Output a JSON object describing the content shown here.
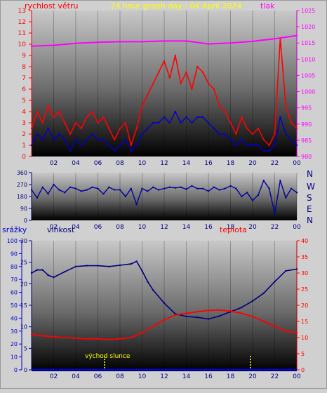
{
  "header": {
    "wind_title": "rychlost větru",
    "graph_title": "24 hour graph day : 04 April 2024",
    "pressure_title": "tlak"
  },
  "direction_axis": [
    "N",
    "W",
    "S",
    "E",
    "N"
  ],
  "lower_titles": {
    "rain": "srážky",
    "humidity": "vlhkost",
    "temperature": "teplota",
    "sunrise": "východ slunce"
  },
  "colors": {
    "wind": "#ff0000",
    "wind_avg": "#0000cc",
    "pressure": "#ff00ff",
    "direction": "#0000a0",
    "humidity": "#000080",
    "temperature": "#ff0000",
    "rain": "#0000ff",
    "sun_marker": "#ffff00",
    "title": "#ffff00"
  },
  "chart_data": [
    {
      "type": "line",
      "name": "wind_pressure",
      "xticks": [
        "02",
        "04",
        "06",
        "08",
        "10",
        "12",
        "14",
        "16",
        "18",
        "20",
        "22",
        "00"
      ],
      "y_left": {
        "title": "rychlost větru",
        "ticks": [
          "0",
          "1",
          "2",
          "3",
          "4",
          "5",
          "6",
          "7",
          "8",
          "9",
          "10",
          "11",
          "12",
          "13"
        ],
        "ylim": [
          0,
          13
        ]
      },
      "y_right": {
        "title": "tlak",
        "ticks": [
          "980",
          "985",
          "990",
          "995",
          "1000",
          "1005",
          "1010",
          "1015",
          "1020",
          "1025"
        ],
        "ylim": [
          980,
          1025
        ]
      },
      "series": [
        {
          "axis": "left",
          "kind": "gust",
          "x": [
            0,
            0.5,
            1,
            1.5,
            2,
            2.5,
            3,
            3.5,
            4,
            4.5,
            5,
            5.5,
            6,
            6.5,
            7,
            7.5,
            8,
            8.5,
            9,
            9.5,
            10,
            10.5,
            11,
            11.5,
            12,
            12.5,
            13,
            13.5,
            14,
            14.5,
            15,
            15.5,
            16,
            16.5,
            17,
            17.5,
            18,
            18.5,
            19,
            19.5,
            20,
            20.5,
            21,
            21.5,
            22,
            22.5,
            23,
            23.5,
            24
          ],
          "values": [
            2.5,
            4.0,
            3.0,
            4.5,
            3.5,
            4.0,
            3.0,
            2.0,
            3.0,
            2.5,
            3.5,
            4.0,
            3.0,
            3.5,
            2.5,
            1.5,
            2.5,
            3.0,
            1.0,
            2.5,
            4.5,
            5.5,
            6.5,
            7.5,
            8.5,
            7.0,
            9.0,
            6.5,
            7.5,
            6.0,
            8.0,
            7.5,
            6.5,
            6.0,
            4.5,
            4.0,
            3.0,
            2.0,
            3.5,
            2.5,
            2.0,
            2.5,
            1.5,
            1.0,
            2.0,
            10.5,
            4.5,
            3.0,
            2.5
          ]
        },
        {
          "axis": "left",
          "kind": "average",
          "x": [
            0,
            0.5,
            1,
            1.5,
            2,
            2.5,
            3,
            3.5,
            4,
            4.5,
            5,
            5.5,
            6,
            6.5,
            7,
            7.5,
            8,
            8.5,
            9,
            9.5,
            10,
            10.5,
            11,
            11.5,
            12,
            12.5,
            13,
            13.5,
            14,
            14.5,
            15,
            15.5,
            16,
            16.5,
            17,
            17.5,
            18,
            18.5,
            19,
            19.5,
            20,
            20.5,
            21,
            21.5,
            22,
            22.5,
            23,
            23.5,
            24
          ],
          "values": [
            1.0,
            2.0,
            1.5,
            2.5,
            1.5,
            2.0,
            1.5,
            0.5,
            1.5,
            1.0,
            1.5,
            2.0,
            1.5,
            1.5,
            1.0,
            0.5,
            1.0,
            1.5,
            0.5,
            1.0,
            2.0,
            2.5,
            3.0,
            3.0,
            3.5,
            3.0,
            4.0,
            3.0,
            3.5,
            3.0,
            3.5,
            3.5,
            3.0,
            2.5,
            2.0,
            2.0,
            1.5,
            1.0,
            1.5,
            1.0,
            1.0,
            1.0,
            0.5,
            0.5,
            1.0,
            3.5,
            2.0,
            1.5,
            1.0
          ]
        },
        {
          "axis": "right",
          "kind": "pressure",
          "x": [
            0,
            2,
            4,
            6,
            8,
            10,
            12,
            14,
            16,
            18,
            20,
            22,
            24
          ],
          "values": [
            1014.0,
            1014.3,
            1014.9,
            1015.2,
            1015.4,
            1015.4,
            1015.6,
            1015.6,
            1014.7,
            1015.0,
            1015.5,
            1016.3,
            1017.3
          ]
        }
      ]
    },
    {
      "type": "line",
      "name": "wind_direction",
      "xticks": [
        "02",
        "04",
        "06",
        "08",
        "10",
        "12",
        "14",
        "16",
        "18",
        "20",
        "22",
        "00"
      ],
      "yticks": [
        "360",
        "270",
        "180",
        "90",
        "0"
      ],
      "ylim": [
        0,
        360
      ],
      "series": [
        {
          "x": [
            0,
            0.5,
            1,
            1.5,
            2,
            2.5,
            3,
            3.5,
            4,
            4.5,
            5,
            5.5,
            6,
            6.5,
            7,
            7.5,
            8,
            8.5,
            9,
            9.5,
            10,
            10.5,
            11,
            11.5,
            12,
            12.5,
            13,
            13.5,
            14,
            14.5,
            15,
            15.5,
            16,
            16.5,
            17,
            17.5,
            18,
            18.5,
            19,
            19.5,
            20,
            20.5,
            21,
            21.5,
            22,
            22.5,
            23,
            23.5,
            24
          ],
          "values": [
            230,
            170,
            250,
            200,
            270,
            230,
            210,
            250,
            240,
            220,
            230,
            250,
            240,
            200,
            250,
            230,
            230,
            180,
            240,
            120,
            240,
            220,
            250,
            230,
            240,
            250,
            245,
            250,
            235,
            260,
            240,
            240,
            220,
            250,
            230,
            240,
            260,
            240,
            180,
            210,
            150,
            190,
            300,
            240,
            50,
            300,
            170,
            240,
            210
          ]
        }
      ]
    },
    {
      "type": "line",
      "name": "rain_humidity_temperature",
      "xticks": [
        "02",
        "04",
        "06",
        "08",
        "10",
        "12",
        "14",
        "16",
        "18",
        "20",
        "22",
        "00"
      ],
      "rain_axis": {
        "title": "srážky",
        "ticks": [
          "0",
          "10",
          "20",
          "30",
          "40",
          "50",
          "60",
          "70",
          "80",
          "90",
          "100"
        ],
        "ylim": [
          0,
          100
        ]
      },
      "humidity_axis": {
        "title": "vlhkost",
        "ticks": [
          "0",
          "5",
          "10",
          "15",
          "20",
          "25",
          "30"
        ],
        "ylim": [
          0,
          30
        ]
      },
      "temperature_axis": {
        "title": "teplota",
        "ticks": [
          "0",
          "5",
          "10",
          "15",
          "20",
          "25",
          "30",
          "35",
          "40"
        ],
        "ylim": [
          0,
          40
        ]
      },
      "series": [
        {
          "name": "vlhkost",
          "x": [
            0,
            0.5,
            1,
            1.5,
            2,
            3,
            4,
            5,
            6,
            7,
            8,
            9,
            9.5,
            10,
            10.5,
            11,
            12,
            13,
            14,
            15,
            16,
            17,
            18,
            19,
            20,
            21,
            22,
            23,
            24
          ],
          "values": [
            22.5,
            23.2,
            23.2,
            22.0,
            21.5,
            22.8,
            24.0,
            24.2,
            24.2,
            24.0,
            24.3,
            24.6,
            25.2,
            23.0,
            20.5,
            18.5,
            15.5,
            13.0,
            12.4,
            12.2,
            11.8,
            12.5,
            13.5,
            14.5,
            16.0,
            17.8,
            20.5,
            23.0,
            23.4
          ]
        },
        {
          "name": "teplota",
          "x": [
            0,
            1,
            2,
            3,
            4,
            5,
            6,
            7,
            8,
            9,
            10,
            11,
            12,
            13,
            14,
            15,
            16,
            17,
            18,
            19,
            20,
            21,
            22,
            23,
            24
          ],
          "values": [
            11.0,
            10.5,
            10.3,
            10.0,
            9.8,
            9.6,
            9.6,
            9.4,
            9.6,
            10.0,
            11.5,
            13.5,
            15.5,
            17.0,
            17.5,
            18.0,
            18.4,
            18.5,
            18.2,
            17.5,
            16.5,
            15.0,
            13.5,
            12.0,
            11.5
          ]
        },
        {
          "name": "srážky",
          "x": [
            0,
            24
          ],
          "values": [
            0,
            0
          ]
        }
      ],
      "sunrise_hour": 6.6,
      "sunset_hour": 19.8
    }
  ]
}
